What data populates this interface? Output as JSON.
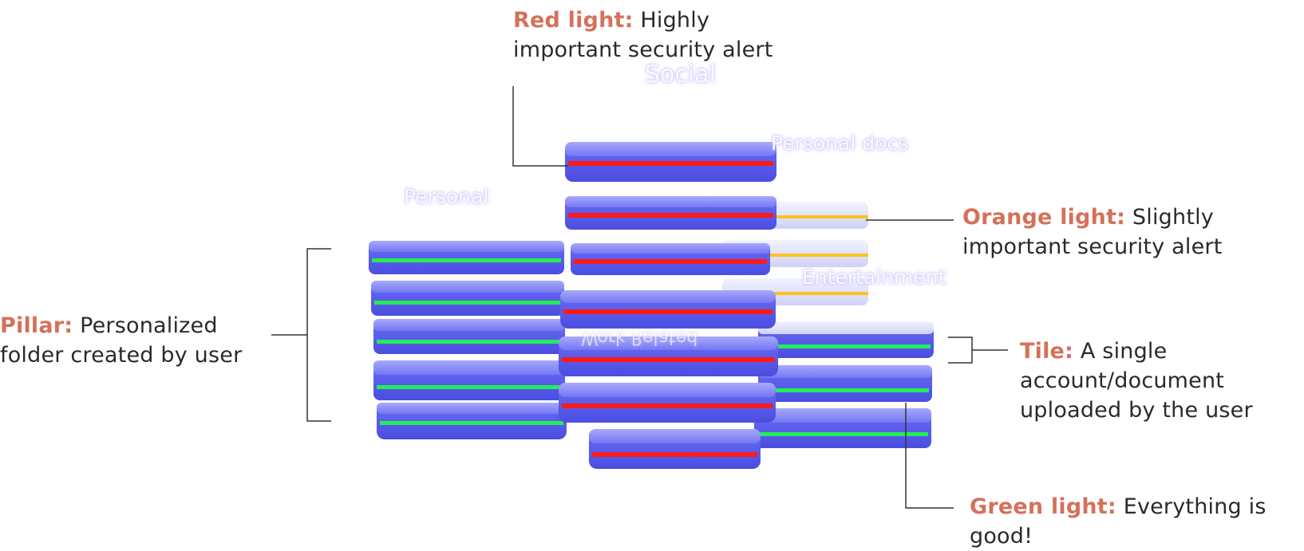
{
  "annotations": {
    "red": {
      "key": "Red light:",
      "text_line1": "Highly",
      "text_line2": "important security alert"
    },
    "orange": {
      "key": "Orange light:",
      "text_line1": "Slightly",
      "text_line2": "important security alert"
    },
    "pillar": {
      "key": "Pillar:",
      "text_line1": "Personalized",
      "text_line2": "folder created by user"
    },
    "tile": {
      "key": "Tile:",
      "text_line1": "A single",
      "text_line2": "account/document",
      "text_line3": "uploaded by the user"
    },
    "green": {
      "key": "Green light:",
      "text_line1": "Everything is",
      "text_line2": "good!"
    }
  },
  "pillar_labels": {
    "social": "Social",
    "personal_docs": "Personal docs",
    "personal": "Personal",
    "entertainment": "Entertainment",
    "work_related": "Work Related"
  },
  "colors": {
    "tile": "#5b5ef0",
    "tile_light": "#8a8cf7",
    "red": "#ff1a1a",
    "orange": "#ffc21a",
    "green": "#22ee55",
    "accent": "#d4715a",
    "line": "#333333"
  }
}
